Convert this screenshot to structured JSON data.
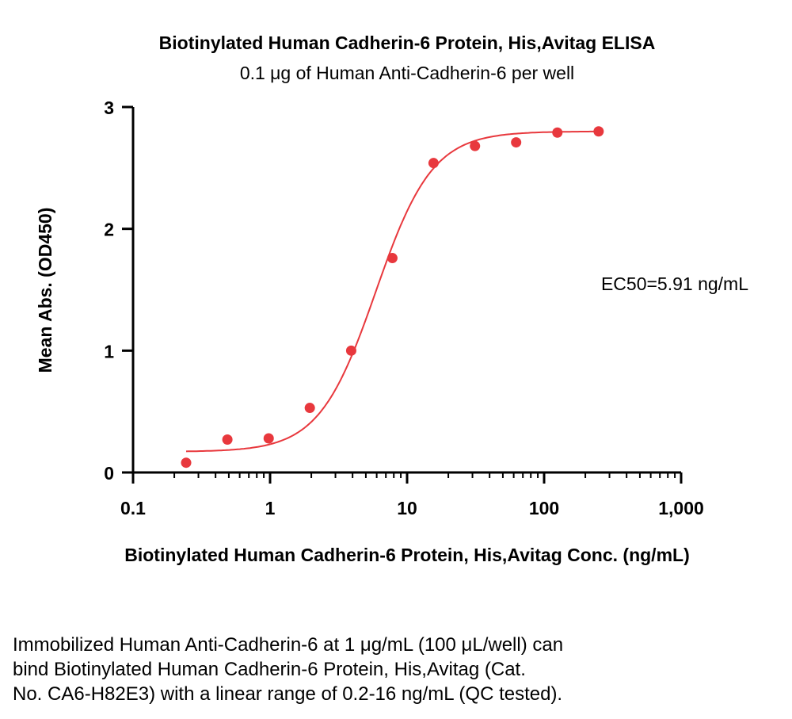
{
  "chart_data": {
    "type": "scatter",
    "title": "Biotinylated Human Cadherin-6 Protein, His,Avitag ELISA",
    "subtitle": "0.1 μg of Human Anti-Cadherin-6 per well",
    "xlabel": "Biotinylated Human Cadherin-6 Protein, His,Avitag Conc. (ng/mL)",
    "ylabel": "Mean Abs. (OD450)",
    "x_scale": "log",
    "xlim": [
      0.1,
      1000
    ],
    "ylim": [
      0,
      3
    ],
    "x_ticks": [
      0.1,
      1,
      10,
      100,
      1000
    ],
    "x_tick_labels": [
      "0.1",
      "1",
      "10",
      "100",
      "1,000"
    ],
    "y_ticks": [
      0,
      1,
      2,
      3
    ],
    "y_tick_labels": [
      "0",
      "1",
      "2",
      "3"
    ],
    "grid": false,
    "legend": "none",
    "series": [
      {
        "x": [
          0.244,
          0.488,
          0.977,
          1.95,
          3.91,
          7.81,
          15.6,
          31.3,
          62.5,
          125,
          250
        ],
        "y": [
          0.08,
          0.27,
          0.28,
          0.53,
          1.0,
          1.76,
          2.54,
          2.68,
          2.71,
          2.79,
          2.8
        ],
        "color": "#e8383d"
      }
    ],
    "fit": {
      "type": "4PL",
      "bottom": 0.17,
      "top": 2.8,
      "ec50": 5.91,
      "hill": 2.1,
      "x_range": [
        0.244,
        250
      ],
      "color": "#e8383d"
    },
    "annotation": "EC50=5.91 ng/mL"
  },
  "caption": {
    "line1": "Immobilized Human Anti-Cadherin-6 at 1 μg/mL (100 μL/well) can",
    "line2": "bind Biotinylated Human Cadherin-6 Protein, His,Avitag (Cat.",
    "line3": "No. CA6-H82E3) with a linear range of 0.2-16 ng/mL (QC tested)."
  }
}
